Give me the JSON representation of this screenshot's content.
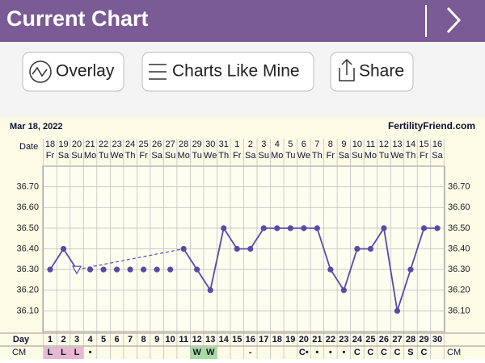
{
  "header": {
    "title": "Current Chart"
  },
  "toolbar": {
    "buttons": [
      "Overlay",
      "Charts Like Mine",
      "Share"
    ]
  },
  "chart_data": {
    "type": "line",
    "date": "Mar 18, 2022",
    "site": "FertilityFriend.com",
    "date_row_label": "Date",
    "day_row_label": "Day",
    "cm_row_label": "CM",
    "categories": [
      "18",
      "19",
      "20",
      "21",
      "22",
      "23",
      "24",
      "25",
      "26",
      "27",
      "28",
      "29",
      "30",
      "31",
      "1",
      "2",
      "3",
      "4",
      "5",
      "6",
      "7",
      "8",
      "9",
      "10",
      "11",
      "12",
      "13",
      "14",
      "15",
      "16"
    ],
    "weekdays": [
      "Fr",
      "Sa",
      "Su",
      "Mo",
      "Tu",
      "We",
      "Th",
      "Fr",
      "Sa",
      "Su",
      "Mo",
      "Tu",
      "We",
      "Th",
      "Fr",
      "Sa",
      "Su",
      "Mo",
      "Tu",
      "We",
      "Th",
      "Fr",
      "Sa",
      "Su",
      "Mo",
      "Tu",
      "We",
      "Th",
      "Fr",
      "Sa"
    ],
    "days": [
      1,
      2,
      3,
      4,
      5,
      6,
      7,
      8,
      9,
      10,
      11,
      12,
      13,
      14,
      15,
      16,
      17,
      18,
      19,
      20,
      21,
      22,
      23,
      24,
      25,
      26,
      27,
      28,
      29,
      30
    ],
    "cm": [
      "L",
      "L",
      "L",
      "•",
      null,
      null,
      null,
      null,
      null,
      null,
      null,
      "W",
      "W",
      null,
      null,
      "-",
      null,
      null,
      null,
      "C•",
      "•",
      "•",
      "•",
      "C",
      "C",
      "C",
      "C",
      "S",
      "C",
      null
    ],
    "values": [
      36.3,
      36.4,
      36.3,
      36.3,
      36.3,
      36.3,
      36.3,
      36.3,
      36.3,
      36.3,
      36.4,
      36.3,
      36.2,
      36.5,
      36.4,
      36.4,
      36.5,
      36.5,
      36.5,
      36.5,
      36.5,
      36.3,
      36.2,
      36.4,
      36.4,
      36.5,
      36.1,
      36.3,
      36.5,
      36.5
    ],
    "color": "#5a4aa8",
    "ylim": [
      36.0,
      36.8
    ],
    "yticks": [
      {
        "value": 36.1,
        "label": "36.10"
      },
      {
        "value": 36.2,
        "label": "36.20"
      },
      {
        "value": 36.3,
        "label": "36.30"
      },
      {
        "value": 36.4,
        "label": "36.40"
      },
      {
        "value": 36.5,
        "label": "36.50"
      },
      {
        "value": 36.6,
        "label": "36.60"
      },
      {
        "value": 36.7,
        "label": "36.70"
      }
    ],
    "grid": true
  }
}
